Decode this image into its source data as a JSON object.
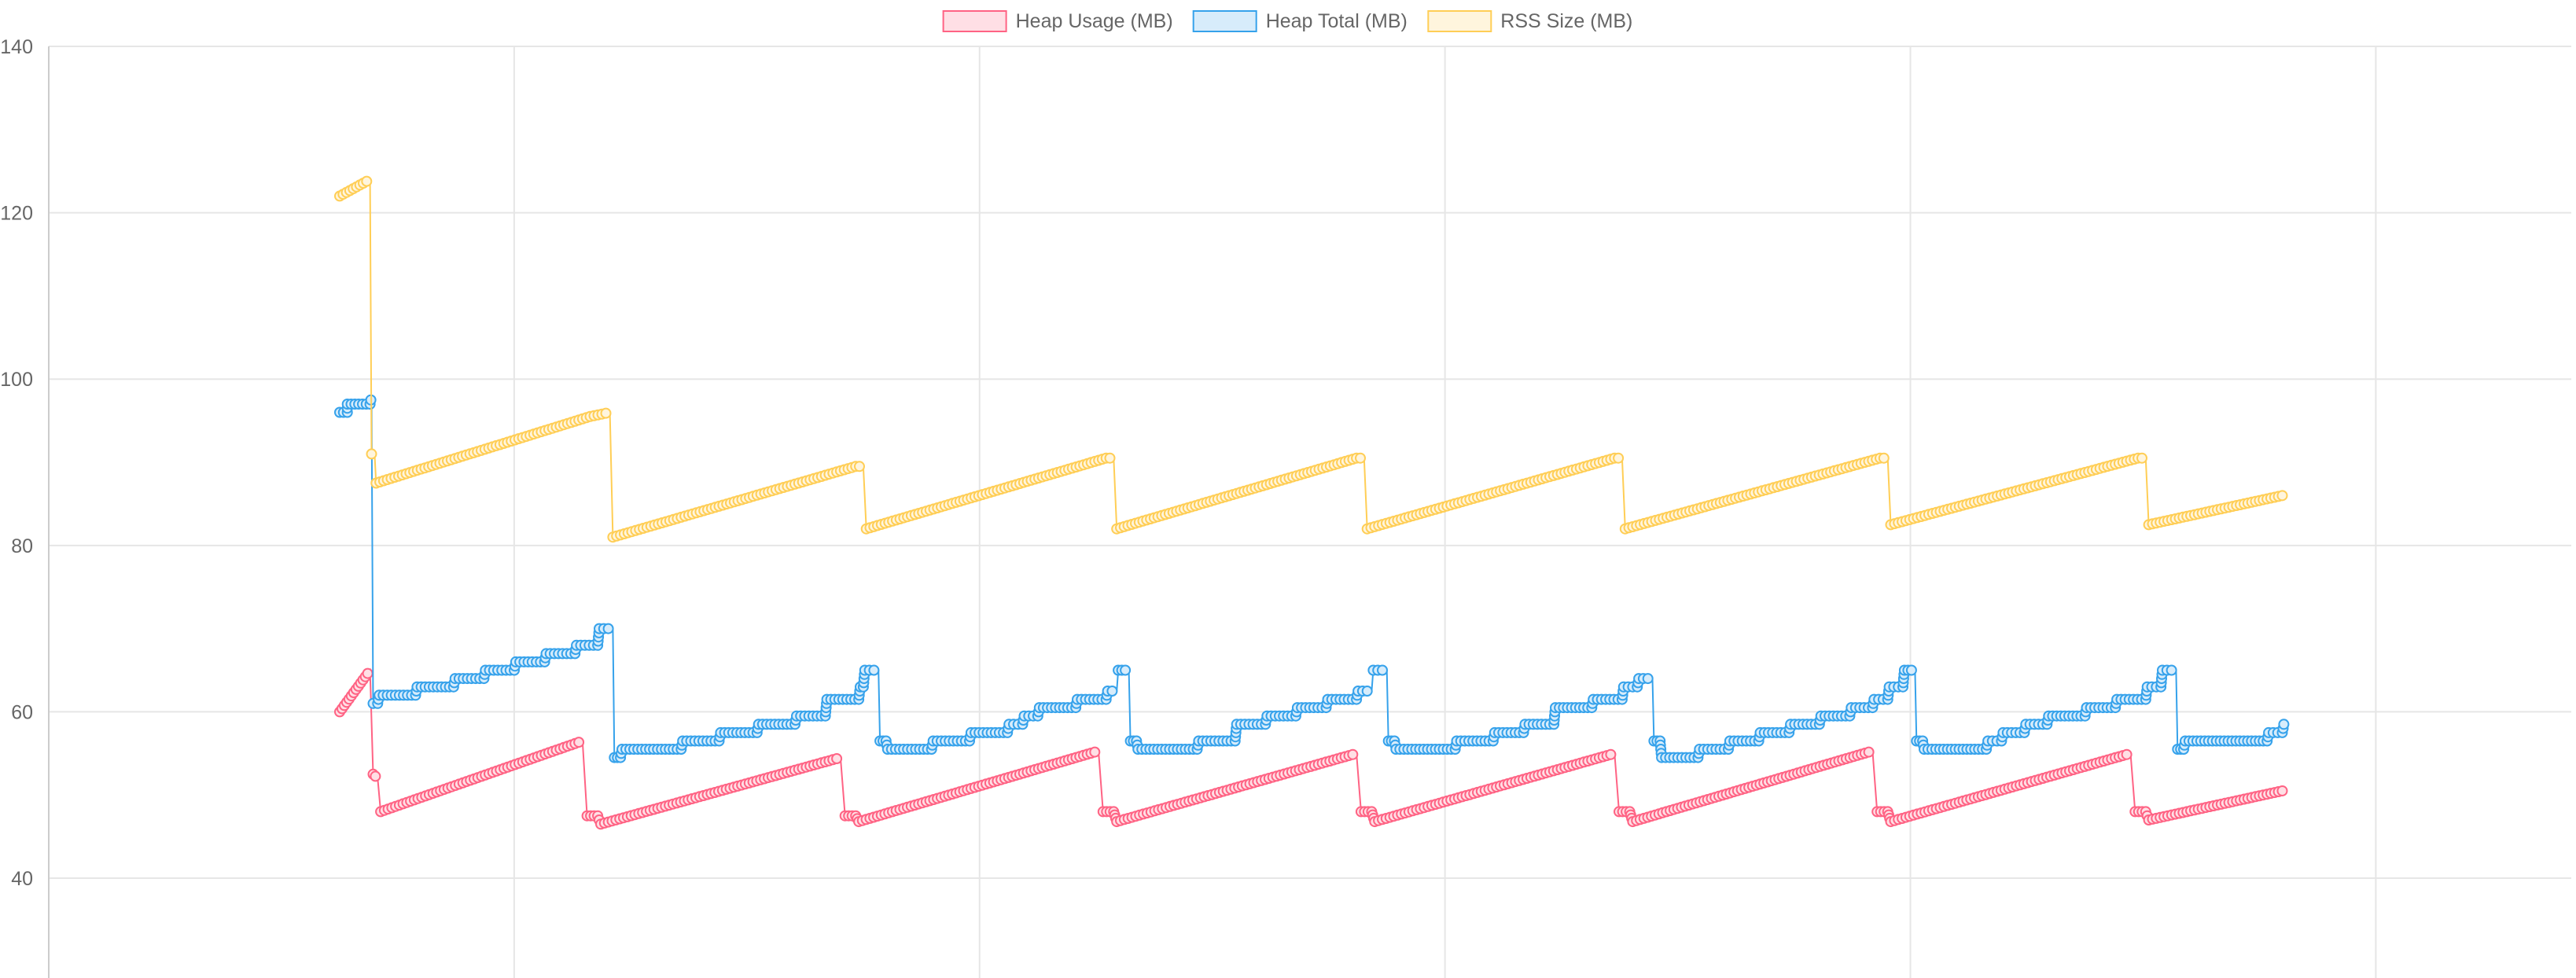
{
  "chart_data": {
    "type": "line",
    "title": "",
    "xlabel": "",
    "ylabel": "",
    "ylim": [
      28,
      140
    ],
    "y_ticks": [
      40,
      60,
      80,
      100,
      120,
      140
    ],
    "x_grid_lines": 6,
    "grid": true,
    "legend_position": "top",
    "x_range": [
      0,
      1430
    ],
    "series": [
      {
        "name": "Heap Usage (MB)",
        "color": "#ff6384",
        "fill": "#ffdfe5",
        "points": [
          [
            0,
            60
          ],
          [
            20,
            65
          ],
          [
            22,
            52.5
          ],
          [
            25,
            52
          ],
          [
            27,
            48
          ],
          [
            160,
            56.5
          ],
          [
            163,
            47.5
          ],
          [
            170,
            47.5
          ],
          [
            172,
            46.5
          ],
          [
            330,
            54.5
          ],
          [
            333,
            47.5
          ],
          [
            340,
            47.5
          ],
          [
            342,
            46.8
          ],
          [
            500,
            55.3
          ],
          [
            503,
            48
          ],
          [
            510,
            48
          ],
          [
            512,
            46.8
          ],
          [
            670,
            55
          ],
          [
            673,
            48
          ],
          [
            680,
            48
          ],
          [
            682,
            46.8
          ],
          [
            840,
            55
          ],
          [
            843,
            48
          ],
          [
            850,
            48
          ],
          [
            852,
            46.8
          ],
          [
            1010,
            55.3
          ],
          [
            1013,
            48
          ],
          [
            1020,
            48
          ],
          [
            1022,
            46.8
          ],
          [
            1180,
            55
          ],
          [
            1183,
            48
          ],
          [
            1190,
            48
          ],
          [
            1192,
            47
          ],
          [
            1280,
            50.5
          ]
        ]
      },
      {
        "name": "Heap Total (MB)",
        "color": "#36a2eb",
        "fill": "#d7ecfb",
        "points": [
          [
            0,
            96
          ],
          [
            5,
            96
          ],
          [
            5,
            97
          ],
          [
            20,
            97
          ],
          [
            21,
            98
          ],
          [
            22,
            61
          ],
          [
            25,
            61
          ],
          [
            26,
            62
          ],
          [
            50,
            62
          ],
          [
            51,
            63
          ],
          [
            75,
            63
          ],
          [
            76,
            64
          ],
          [
            95,
            64
          ],
          [
            96,
            65
          ],
          [
            115,
            65
          ],
          [
            116,
            66
          ],
          [
            135,
            66
          ],
          [
            136,
            67
          ],
          [
            155,
            67
          ],
          [
            156,
            68
          ],
          [
            170,
            68
          ],
          [
            171,
            70
          ],
          [
            180,
            70
          ],
          [
            181,
            54.5
          ],
          [
            185,
            54.5
          ],
          [
            186,
            55.5
          ],
          [
            225,
            55.5
          ],
          [
            226,
            56.5
          ],
          [
            250,
            56.5
          ],
          [
            251,
            57.5
          ],
          [
            275,
            57.5
          ],
          [
            276,
            58.5
          ],
          [
            300,
            58.5
          ],
          [
            301,
            59.5
          ],
          [
            320,
            59.5
          ],
          [
            321,
            61.5
          ],
          [
            342,
            61.5
          ],
          [
            343,
            63
          ],
          [
            345,
            63
          ],
          [
            346,
            65
          ],
          [
            355,
            65
          ],
          [
            356,
            56.5
          ],
          [
            360,
            56.5
          ],
          [
            361,
            55.5
          ],
          [
            390,
            55.5
          ],
          [
            391,
            56.5
          ],
          [
            415,
            56.5
          ],
          [
            416,
            57.5
          ],
          [
            440,
            57.5
          ],
          [
            441,
            58.5
          ],
          [
            450,
            58.5
          ],
          [
            451,
            59.5
          ],
          [
            460,
            59.5
          ],
          [
            461,
            60.5
          ],
          [
            485,
            60.5
          ],
          [
            486,
            61.5
          ],
          [
            505,
            61.5
          ],
          [
            506,
            62.5
          ],
          [
            512,
            62.5
          ],
          [
            513,
            65
          ],
          [
            520,
            65
          ],
          [
            521,
            56.5
          ],
          [
            525,
            56.5
          ],
          [
            526,
            55.5
          ],
          [
            565,
            55.5
          ],
          [
            566,
            56.5
          ],
          [
            590,
            56.5
          ],
          [
            591,
            58.5
          ],
          [
            610,
            58.5
          ],
          [
            611,
            59.5
          ],
          [
            630,
            59.5
          ],
          [
            631,
            60.5
          ],
          [
            650,
            60.5
          ],
          [
            651,
            61.5
          ],
          [
            670,
            61.5
          ],
          [
            671,
            62.5
          ],
          [
            680,
            62.5
          ],
          [
            681,
            65
          ],
          [
            690,
            65
          ],
          [
            691,
            56.5
          ],
          [
            695,
            56.5
          ],
          [
            696,
            55.5
          ],
          [
            735,
            55.5
          ],
          [
            736,
            56.5
          ],
          [
            760,
            56.5
          ],
          [
            761,
            57.5
          ],
          [
            780,
            57.5
          ],
          [
            781,
            58.5
          ],
          [
            800,
            58.5
          ],
          [
            801,
            60.5
          ],
          [
            825,
            60.5
          ],
          [
            826,
            61.5
          ],
          [
            845,
            61.5
          ],
          [
            846,
            63
          ],
          [
            855,
            63
          ],
          [
            856,
            64
          ],
          [
            865,
            64
          ],
          [
            866,
            56.5
          ],
          [
            870,
            56.5
          ],
          [
            871,
            54.5
          ],
          [
            895,
            54.5
          ],
          [
            896,
            55.5
          ],
          [
            915,
            55.5
          ],
          [
            916,
            56.5
          ],
          [
            935,
            56.5
          ],
          [
            936,
            57.5
          ],
          [
            955,
            57.5
          ],
          [
            956,
            58.5
          ],
          [
            975,
            58.5
          ],
          [
            976,
            59.5
          ],
          [
            995,
            59.5
          ],
          [
            996,
            60.5
          ],
          [
            1010,
            60.5
          ],
          [
            1011,
            61.5
          ],
          [
            1020,
            61.5
          ],
          [
            1021,
            63
          ],
          [
            1030,
            63
          ],
          [
            1031,
            65
          ],
          [
            1038,
            65
          ],
          [
            1039,
            56.5
          ],
          [
            1043,
            56.5
          ],
          [
            1044,
            55.5
          ],
          [
            1085,
            55.5
          ],
          [
            1086,
            56.5
          ],
          [
            1095,
            56.5
          ],
          [
            1096,
            57.5
          ],
          [
            1110,
            57.5
          ],
          [
            1111,
            58.5
          ],
          [
            1125,
            58.5
          ],
          [
            1126,
            59.5
          ],
          [
            1150,
            59.5
          ],
          [
            1151,
            60.5
          ],
          [
            1170,
            60.5
          ],
          [
            1171,
            61.5
          ],
          [
            1190,
            61.5
          ],
          [
            1191,
            63
          ],
          [
            1200,
            63
          ],
          [
            1201,
            65
          ],
          [
            1210,
            65
          ],
          [
            1211,
            55.5
          ],
          [
            1215,
            55.5
          ],
          [
            1216,
            56.5
          ],
          [
            1270,
            56.5
          ],
          [
            1271,
            57.5
          ],
          [
            1280,
            57.5
          ],
          [
            1281,
            58.5
          ]
        ]
      },
      {
        "name": "RSS Size (MB)",
        "color": "#ffce56",
        "fill": "#fff5dd",
        "points": [
          [
            0,
            122
          ],
          [
            20,
            124
          ],
          [
            21,
            91
          ],
          [
            23,
            91
          ],
          [
            24,
            87.5
          ],
          [
            165,
            95.5
          ],
          [
            178,
            96
          ],
          [
            180,
            81
          ],
          [
            340,
            89.5
          ],
          [
            345,
            89.5
          ],
          [
            347,
            82
          ],
          [
            505,
            90.5
          ],
          [
            510,
            90.5
          ],
          [
            512,
            82
          ],
          [
            670,
            90.5
          ],
          [
            675,
            90.5
          ],
          [
            677,
            82
          ],
          [
            840,
            90.5
          ],
          [
            845,
            90.5
          ],
          [
            847,
            82
          ],
          [
            1015,
            90.5
          ],
          [
            1020,
            90.5
          ],
          [
            1022,
            82.5
          ],
          [
            1185,
            90.5
          ],
          [
            1190,
            90.5
          ],
          [
            1192,
            82.5
          ],
          [
            1280,
            86
          ]
        ]
      }
    ]
  }
}
